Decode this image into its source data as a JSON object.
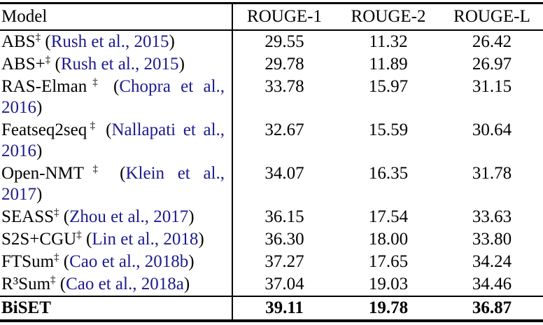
{
  "table": {
    "columns": [
      "Model",
      "ROUGE-1",
      "ROUGE-2",
      "ROUGE-L"
    ],
    "punctuation": {
      "open_paren": "(",
      "close_paren": ")"
    },
    "colors": {
      "citation_link": "#1b1b8f",
      "text": "#000000",
      "rule": "#000000"
    },
    "rows": [
      {
        "model": "ABS",
        "marker": "‡",
        "citation": "Rush et al., 2015",
        "values": [
          "29.55",
          "11.32",
          "26.42"
        ],
        "bold": false
      },
      {
        "model": "ABS+",
        "marker": "‡",
        "citation": "Rush et al., 2015",
        "values": [
          "29.78",
          "11.89",
          "26.97"
        ],
        "bold": false
      },
      {
        "model": "RAS-Elman",
        "marker": "‡",
        "citation": "Chopra et al., 2016",
        "values": [
          "33.78",
          "15.97",
          "31.15"
        ],
        "bold": false
      },
      {
        "model": "Featseq2seq",
        "marker": "‡",
        "citation": "Nallapati et al., 2016",
        "values": [
          "32.67",
          "15.59",
          "30.64"
        ],
        "bold": false
      },
      {
        "model": "Open-NMT",
        "marker": "‡",
        "citation": "Klein et al., 2017",
        "values": [
          "34.07",
          "16.35",
          "31.78"
        ],
        "bold": false
      },
      {
        "model": "SEASS",
        "marker": "‡",
        "citation": "Zhou et al., 2017",
        "values": [
          "36.15",
          "17.54",
          "33.63"
        ],
        "bold": false
      },
      {
        "model": "S2S+CGU",
        "marker": "‡",
        "citation": "Lin et al., 2018",
        "values": [
          "36.30",
          "18.00",
          "33.80"
        ],
        "bold": false
      },
      {
        "model": "FTSum",
        "marker": "‡",
        "citation": "Cao et al., 2018b",
        "values": [
          "37.27",
          "17.65",
          "34.24"
        ],
        "bold": false
      },
      {
        "model": "R³Sum",
        "marker": "‡",
        "citation": "Cao et al., 2018a",
        "values": [
          "37.04",
          "19.03",
          "34.46"
        ],
        "bold": false
      },
      {
        "model": "BiSET",
        "marker": null,
        "citation": null,
        "values": [
          "39.11",
          "19.78",
          "36.87"
        ],
        "bold": true
      }
    ]
  }
}
